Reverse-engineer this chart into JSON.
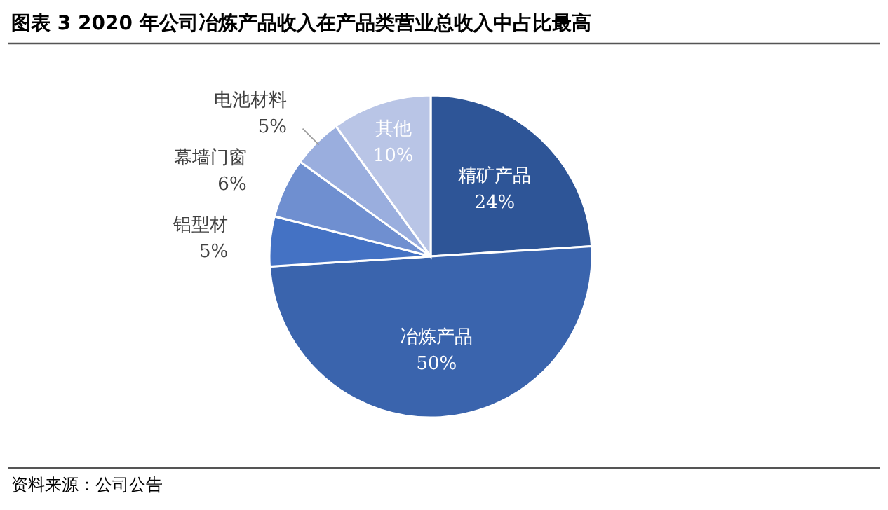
{
  "chart_data": {
    "type": "pie",
    "title": "图表 3 2020 年公司冶炼产品收入在产品类营业总收入中占比最高",
    "categories": [
      "精矿产品",
      "冶炼产品",
      "铝型材",
      "幕墙门窗",
      "电池材料",
      "其他"
    ],
    "values": [
      24,
      50,
      5,
      6,
      5,
      10
    ],
    "colors": [
      "#2e5597",
      "#3a64ad",
      "#4472c4",
      "#6f8fd0",
      "#9aaede",
      "#b9c5e6"
    ],
    "value_labels": [
      "24%",
      "50%",
      "5%",
      "6%",
      "5%",
      "10%"
    ],
    "annotations": [
      "资料来源：公司公告"
    ]
  }
}
